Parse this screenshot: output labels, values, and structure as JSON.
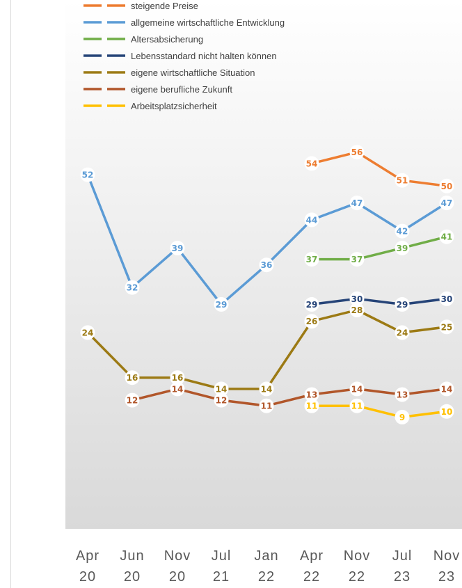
{
  "chart_data": {
    "type": "line",
    "categories": [
      {
        "month": "Apr",
        "year": "20"
      },
      {
        "month": "Jun",
        "year": "20"
      },
      {
        "month": "Nov",
        "year": "20"
      },
      {
        "month": "Jul",
        "year": "21"
      },
      {
        "month": "Jan",
        "year": "22"
      },
      {
        "month": "Apr",
        "year": "22"
      },
      {
        "month": "Nov",
        "year": "22"
      },
      {
        "month": "Jul",
        "year": "23"
      },
      {
        "month": "Nov",
        "year": "23"
      }
    ],
    "ylim": [
      0,
      60
    ],
    "grid": false,
    "legend_position": "top-left",
    "series": [
      {
        "name": "steigende Preise",
        "color": "#ED7D31",
        "values": [
          null,
          null,
          null,
          null,
          null,
          54,
          56,
          51,
          50
        ]
      },
      {
        "name": "allgemeine wirtschaftliche Entwicklung",
        "color": "#5B9BD5",
        "values": [
          52,
          32,
          39,
          29,
          36,
          44,
          47,
          42,
          47
        ]
      },
      {
        "name": "Altersabsicherung",
        "color": "#70AD47",
        "values": [
          null,
          null,
          null,
          null,
          null,
          37,
          37,
          39,
          41
        ]
      },
      {
        "name": "Lebensstandard nicht halten können",
        "color": "#264478",
        "values": [
          null,
          null,
          null,
          null,
          null,
          29,
          30,
          29,
          30
        ]
      },
      {
        "name": "eigene wirtschaftliche Situation",
        "color": "#9C7A14",
        "values": [
          24,
          16,
          16,
          14,
          14,
          26,
          28,
          24,
          25
        ]
      },
      {
        "name": "eigene berufliche Zukunft",
        "color": "#B1562A",
        "values": [
          null,
          12,
          14,
          12,
          11,
          13,
          14,
          13,
          14
        ]
      },
      {
        "name": "Arbeitsplatzsicherheit",
        "color": "#FFC000",
        "values": [
          null,
          null,
          null,
          null,
          null,
          11,
          11,
          9,
          10
        ]
      }
    ]
  }
}
